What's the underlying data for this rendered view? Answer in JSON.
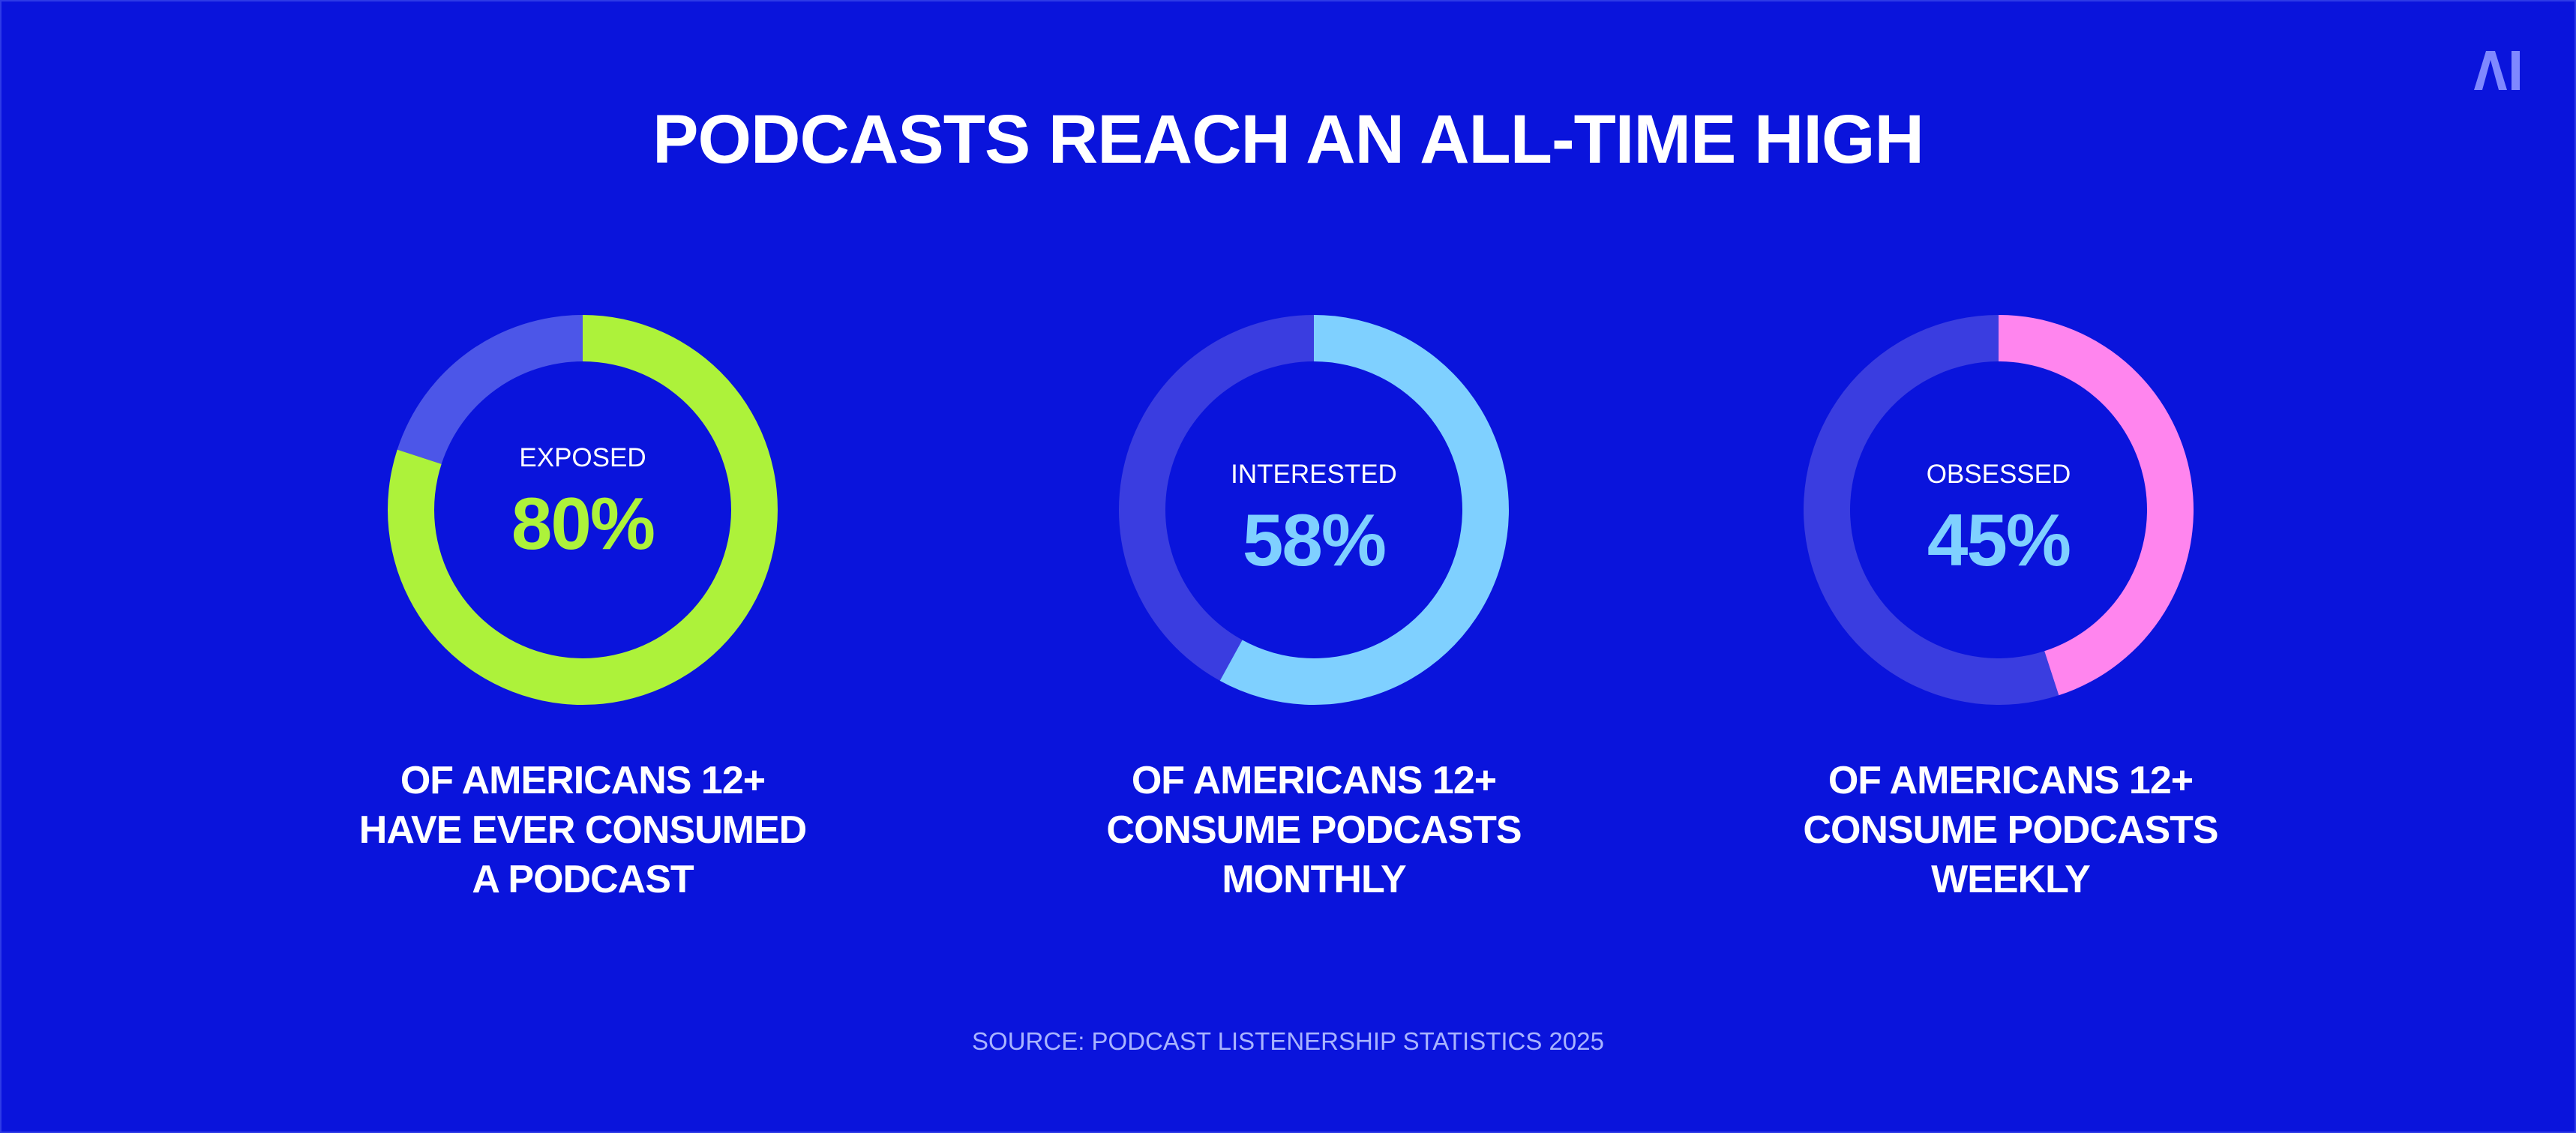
{
  "title": "PODCASTS REACH AN ALL-TIME HIGH",
  "logo_text": "AI",
  "source": "SOURCE: PODCAST LISTENERSHIP STATISTICS 2025",
  "colors": {
    "background": "#0A14DC",
    "title": "#FFFFFF",
    "source": "#A9B4FF"
  },
  "chart_data": [
    {
      "type": "pie",
      "variant": "donut",
      "label": "EXPOSED",
      "value_text": "80%",
      "value": 80,
      "max": 100,
      "color": "#ADF23A",
      "track_color": "#4C56E8",
      "value_color": "#ADF23A",
      "caption_lines": [
        "OF AMERICANS 12+",
        "HAVE EVER CONSUMED",
        "A PODCAST"
      ]
    },
    {
      "type": "pie",
      "variant": "donut",
      "label": "INTERESTED",
      "value_text": "58%",
      "value": 58,
      "max": 100,
      "color": "#7FD0FF",
      "track_color": "#3A3DE0",
      "value_color": "#7FD0FF",
      "caption_lines": [
        "OF AMERICANS 12+",
        "CONSUME PODCASTS",
        "MONTHLY"
      ]
    },
    {
      "type": "pie",
      "variant": "donut",
      "label": "OBSESSED",
      "value_text": "45%",
      "value": 45,
      "max": 100,
      "color": "#FF85EE",
      "track_color": "#3A3DE0",
      "value_color": "#7FD0FF",
      "caption_lines": [
        "OF AMERICANS 12+",
        "CONSUME PODCASTS",
        "WEEKLY"
      ]
    }
  ]
}
